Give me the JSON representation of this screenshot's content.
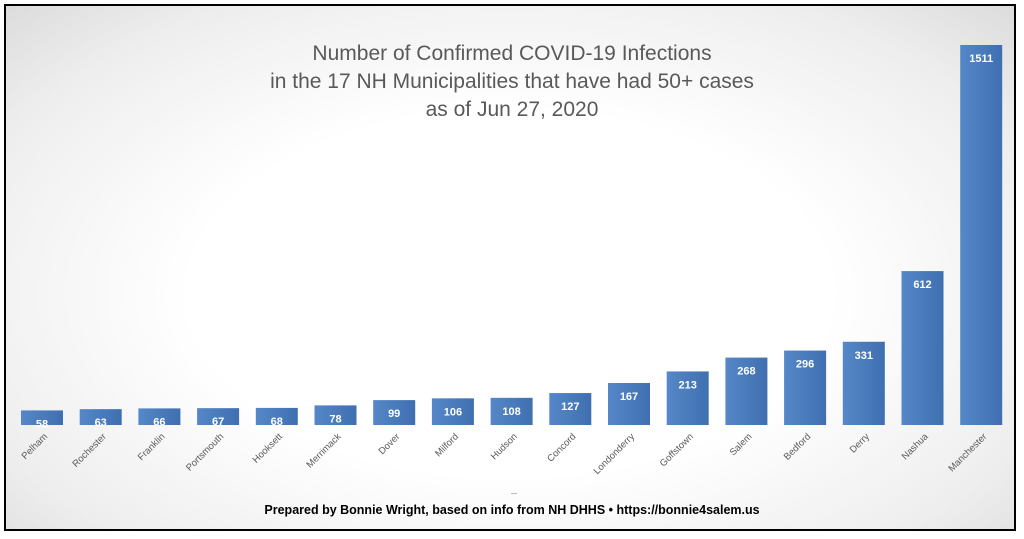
{
  "chart_data": {
    "type": "bar",
    "title": [
      "Number of Confirmed COVID-19 Infections",
      "in the 17 NH Municipalities that have had 50+ cases",
      "as of Jun 27, 2020"
    ],
    "categories": [
      "Pelham",
      "Rochester",
      "Franklin",
      "Portsmouth",
      "Hooksett",
      "Merrimack",
      "Dover",
      "Milford",
      "Hudson",
      "Concord",
      "Londonderry",
      "Goffstown",
      "Salem",
      "Bedford",
      "Derry",
      "Nashua",
      "Manchester"
    ],
    "values": [
      58,
      63,
      66,
      67,
      68,
      78,
      99,
      106,
      108,
      127,
      167,
      213,
      268,
      296,
      331,
      612,
      1511
    ],
    "xlabel": "",
    "ylabel": "",
    "grid": false,
    "legend": "none",
    "bar_color": "#4a7ab8",
    "data_labels": true
  },
  "footer": "Prepared by Bonnie Wright, based on info from NH DHHS • https://bonnie4salem.us"
}
